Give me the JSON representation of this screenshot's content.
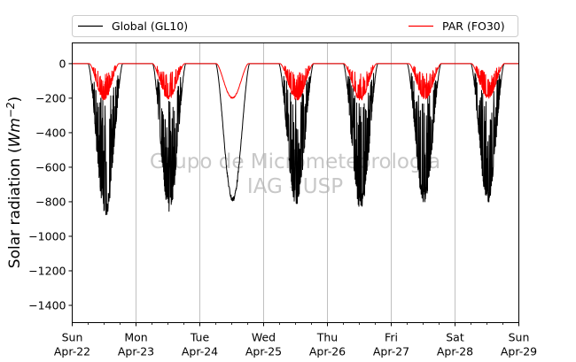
{
  "chart_data": {
    "type": "line",
    "ylabel_prefix": "Solar radiation (",
    "ylabel_unit": "Wm",
    "ylabel_exp": "−2",
    "ylabel_suffix": ")",
    "ylim": [
      -1500,
      120
    ],
    "yticks": [
      0,
      -200,
      -400,
      -600,
      -800,
      -1000,
      -1200,
      -1400
    ],
    "ytick_labels": [
      "0",
      "−200",
      "−400",
      "−600",
      "−800",
      "−1000",
      "−1200",
      "−1400"
    ],
    "xlim_days": [
      0,
      7
    ],
    "xticks": [
      {
        "day": 0,
        "weekday": "Sun",
        "date": "Apr-22"
      },
      {
        "day": 1,
        "weekday": "Mon",
        "date": "Apr-23"
      },
      {
        "day": 2,
        "weekday": "Tue",
        "date": "Apr-24"
      },
      {
        "day": 3,
        "weekday": "Wed",
        "date": "Apr-25"
      },
      {
        "day": 4,
        "weekday": "Thu",
        "date": "Apr-26"
      },
      {
        "day": 5,
        "weekday": "Fri",
        "date": "Apr-27"
      },
      {
        "day": 6,
        "weekday": "Sat",
        "date": "Apr-28"
      },
      {
        "day": 7,
        "weekday": "Sun",
        "date": "Apr-29"
      }
    ],
    "grid": "vertical",
    "legend_placement": "top, above plot",
    "watermark_line1": "Grupo de Micrometeorologia",
    "watermark_line2": "IAG - USP",
    "series": [
      {
        "name": "Global (GL10)",
        "color": "#000000",
        "days": [
          {
            "start": 0.25,
            "end": 0.79,
            "peak": -875,
            "choppy": true
          },
          {
            "start": 1.26,
            "end": 1.78,
            "peak": -855,
            "choppy": true
          },
          {
            "start": 2.25,
            "end": 2.78,
            "peak": -795,
            "choppy": false
          },
          {
            "start": 3.24,
            "end": 3.78,
            "peak": -810,
            "choppy": true
          },
          {
            "start": 4.25,
            "end": 4.79,
            "peak": -838,
            "choppy": true
          },
          {
            "start": 5.25,
            "end": 5.78,
            "peak": -800,
            "choppy": true
          },
          {
            "start": 6.25,
            "end": 6.77,
            "peak": -800,
            "choppy": true
          }
        ]
      },
      {
        "name": "PAR (FO30)",
        "color": "#ff0000",
        "days": [
          {
            "start": 0.27,
            "end": 0.73,
            "peak": -210,
            "choppy": true
          },
          {
            "start": 1.26,
            "end": 1.76,
            "peak": -205,
            "choppy": true
          },
          {
            "start": 2.26,
            "end": 2.76,
            "peak": -200,
            "choppy": false
          },
          {
            "start": 3.26,
            "end": 3.78,
            "peak": -210,
            "choppy": true
          },
          {
            "start": 4.26,
            "end": 4.77,
            "peak": -210,
            "choppy": true
          },
          {
            "start": 5.28,
            "end": 5.78,
            "peak": -205,
            "choppy": true
          },
          {
            "start": 6.26,
            "end": 6.77,
            "peak": -200,
            "choppy": true
          }
        ]
      }
    ]
  }
}
